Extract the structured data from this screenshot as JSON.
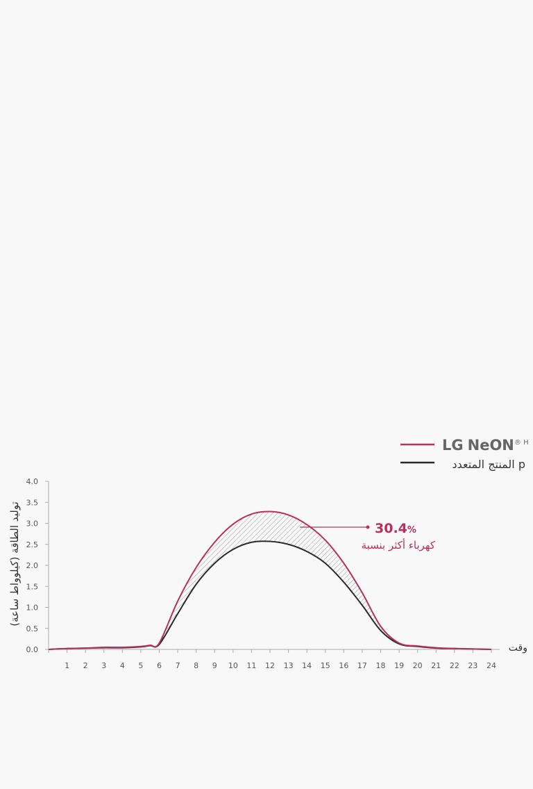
{
  "legend": {
    "series_1_brand": "LG NeON",
    "series_1_brand_lg": "LG",
    "series_1_brand_ne": "Ne",
    "series_1_brand_on": "ON",
    "series_1_superscript": "® H",
    "series_2_label": "المنتج المتعدد p"
  },
  "colors": {
    "lg": "#b5305a",
    "multi": "#2a2a2a",
    "axis": "#aaaaaa",
    "annotation": "#b5305a",
    "brand_gray": "#666666"
  },
  "annotation": {
    "value": "30.4",
    "unit": "%",
    "text": "كهرباء أكثر بنسبة"
  },
  "chart_data": {
    "type": "line",
    "xlabel": "وقت",
    "ylabel": "توليد الطاقة (كيلوواط ساعة)",
    "x_ticks": [
      "1",
      "2",
      "3",
      "4",
      "5",
      "6",
      "7",
      "8",
      "9",
      "10",
      "11",
      "12",
      "13",
      "14",
      "15",
      "16",
      "17",
      "18",
      "19",
      "20",
      "21",
      "22",
      "23",
      "24"
    ],
    "y_ticks": [
      "0.0",
      "0.5",
      "1.0",
      "1.5",
      "2.0",
      "2.5",
      "3.0",
      "3.5",
      "4.0"
    ],
    "xlim": [
      0,
      24
    ],
    "ylim": [
      0,
      4.0
    ],
    "grid": false,
    "legend_position": "top-right",
    "shaded_between_series": true,
    "series": [
      {
        "name": "LG NeON® H",
        "x": [
          0,
          1,
          2,
          3,
          4,
          5,
          5.5,
          6,
          7,
          8,
          9,
          10,
          11,
          12,
          13,
          14,
          15,
          16,
          17,
          18,
          19,
          20,
          21,
          22,
          23,
          24
        ],
        "y": [
          0.0,
          0.02,
          0.03,
          0.05,
          0.05,
          0.07,
          0.1,
          0.15,
          1.15,
          1.95,
          2.55,
          2.98,
          3.22,
          3.28,
          3.2,
          2.97,
          2.6,
          2.05,
          1.35,
          0.55,
          0.15,
          0.08,
          0.04,
          0.02,
          0.01,
          0.0
        ]
      },
      {
        "name": "المنتج المتعدد p",
        "x": [
          0,
          1,
          2,
          3,
          4,
          5,
          5.5,
          6,
          7,
          8,
          9,
          10,
          11,
          12,
          13,
          14,
          15,
          16,
          17,
          18,
          19,
          20,
          21,
          22,
          23,
          24
        ],
        "y": [
          0.0,
          0.02,
          0.03,
          0.04,
          0.04,
          0.06,
          0.09,
          0.12,
          0.85,
          1.55,
          2.05,
          2.38,
          2.55,
          2.57,
          2.5,
          2.33,
          2.05,
          1.6,
          1.05,
          0.45,
          0.13,
          0.07,
          0.03,
          0.02,
          0.01,
          0.0
        ]
      }
    ]
  }
}
